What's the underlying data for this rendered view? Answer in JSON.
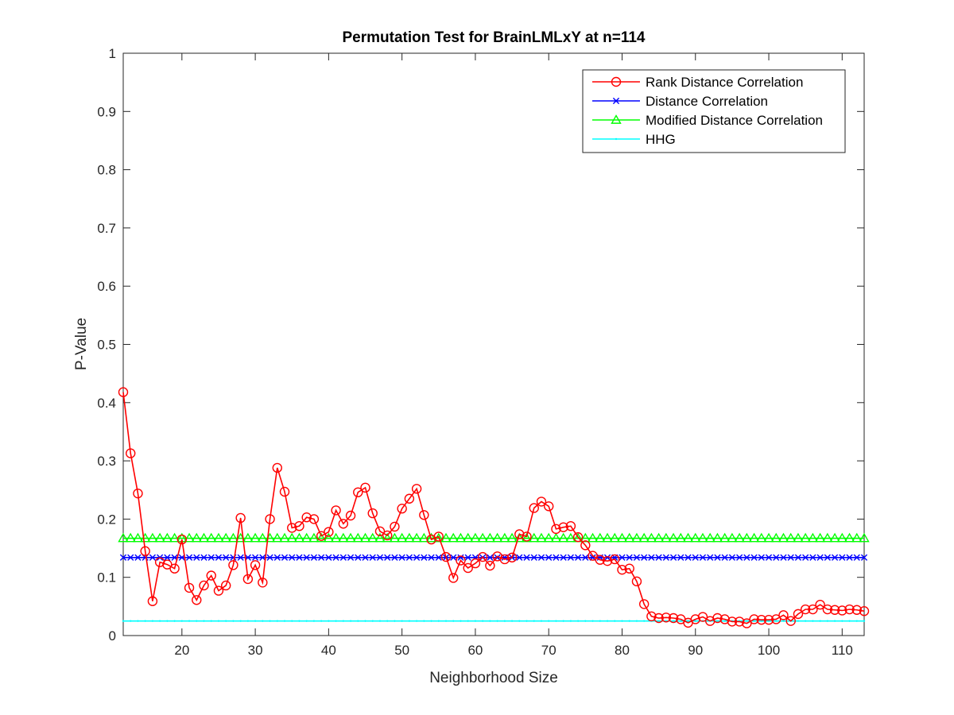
{
  "chart_data": {
    "type": "line",
    "title": "Permutation Test for BrainLMLxY at n=114",
    "xlabel": "Neighborhood Size",
    "ylabel": "P-Value",
    "xlim": [
      12,
      113
    ],
    "ylim": [
      0,
      1
    ],
    "xticks": [
      20,
      30,
      40,
      50,
      60,
      70,
      80,
      90,
      100,
      110
    ],
    "yticks": [
      0,
      0.1,
      0.2,
      0.3,
      0.4,
      0.5,
      0.6,
      0.7,
      0.8,
      0.9,
      1
    ],
    "x_tick_labels": [
      "20",
      "30",
      "40",
      "50",
      "60",
      "70",
      "80",
      "90",
      "100",
      "110"
    ],
    "y_tick_labels": [
      "0",
      "0.1",
      "0.2",
      "0.3",
      "0.4",
      "0.5",
      "0.6",
      "0.7",
      "0.8",
      "0.9",
      "1"
    ],
    "grid": false,
    "legend_position": "top-right",
    "series": [
      {
        "name": "Rank Distance Correlation",
        "color": "#ff0000",
        "marker": "circle",
        "x": [
          12,
          13,
          14,
          15,
          16,
          17,
          18,
          19,
          20,
          21,
          22,
          23,
          24,
          25,
          26,
          27,
          28,
          29,
          30,
          31,
          32,
          33,
          34,
          35,
          36,
          37,
          38,
          39,
          40,
          41,
          42,
          43,
          44,
          45,
          46,
          47,
          48,
          49,
          50,
          51,
          52,
          53,
          54,
          55,
          56,
          57,
          58,
          59,
          60,
          61,
          62,
          63,
          64,
          65,
          66,
          67,
          68,
          69,
          70,
          71,
          72,
          73,
          74,
          75,
          76,
          77,
          78,
          79,
          80,
          81,
          82,
          83,
          84,
          85,
          86,
          87,
          88,
          89,
          90,
          91,
          92,
          93,
          94,
          95,
          96,
          97,
          98,
          99,
          100,
          101,
          102,
          103,
          104,
          105,
          106,
          107,
          108,
          109,
          110,
          111,
          112,
          113
        ],
        "values": [
          0.418,
          0.313,
          0.244,
          0.145,
          0.059,
          0.126,
          0.122,
          0.115,
          0.165,
          0.082,
          0.061,
          0.086,
          0.103,
          0.077,
          0.086,
          0.121,
          0.202,
          0.097,
          0.121,
          0.091,
          0.2,
          0.288,
          0.247,
          0.185,
          0.188,
          0.203,
          0.2,
          0.171,
          0.178,
          0.215,
          0.192,
          0.206,
          0.246,
          0.254,
          0.21,
          0.179,
          0.172,
          0.187,
          0.218,
          0.235,
          0.252,
          0.207,
          0.165,
          0.17,
          0.135,
          0.099,
          0.129,
          0.116,
          0.124,
          0.135,
          0.12,
          0.136,
          0.131,
          0.134,
          0.174,
          0.17,
          0.219,
          0.23,
          0.222,
          0.183,
          0.186,
          0.188,
          0.169,
          0.155,
          0.137,
          0.13,
          0.128,
          0.131,
          0.113,
          0.115,
          0.093,
          0.054,
          0.033,
          0.03,
          0.031,
          0.03,
          0.028,
          0.022,
          0.028,
          0.032,
          0.025,
          0.03,
          0.028,
          0.024,
          0.024,
          0.021,
          0.028,
          0.027,
          0.027,
          0.028,
          0.035,
          0.025,
          0.037,
          0.045,
          0.045,
          0.053,
          0.045,
          0.044,
          0.043,
          0.045,
          0.044,
          0.042
        ]
      },
      {
        "name": "Distance Correlation",
        "color": "#0000ff",
        "marker": "x",
        "constant": 0.134
      },
      {
        "name": "Modified Distance Correlation",
        "color": "#00ff00",
        "marker": "triangle",
        "constant": 0.167
      },
      {
        "name": "HHG",
        "color": "#00ffff",
        "marker": "dot",
        "constant": 0.025
      }
    ]
  }
}
